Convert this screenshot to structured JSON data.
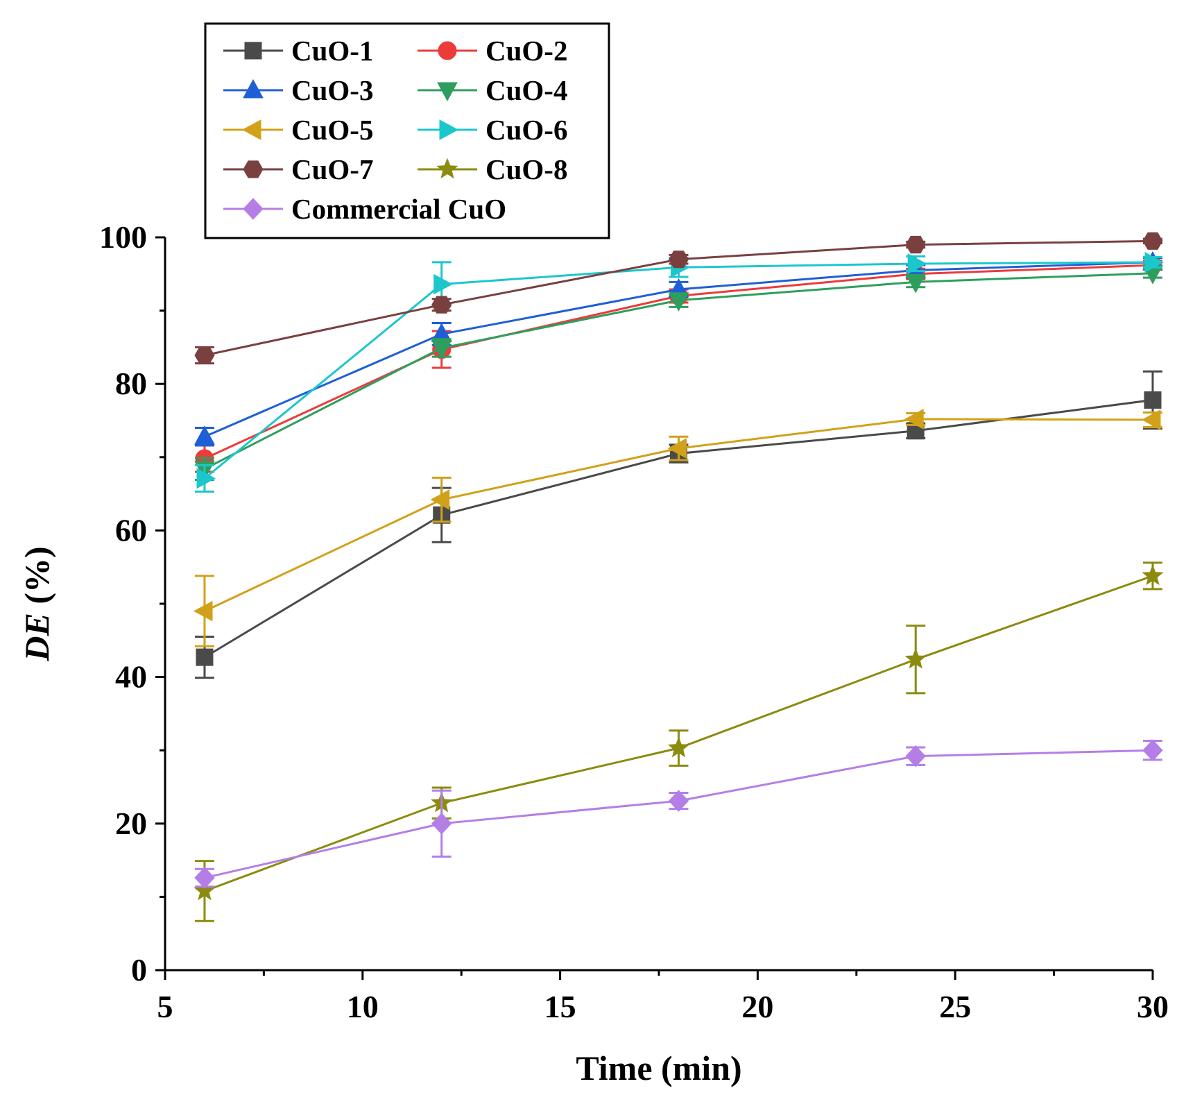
{
  "chart_data": {
    "type": "line",
    "title": "",
    "xlabel": "Time (min)",
    "ylabel_italic": "DE",
    "ylabel_suffix": " (%)",
    "xlim": [
      5,
      30
    ],
    "ylim": [
      0,
      100
    ],
    "xticks": [
      5,
      10,
      15,
      20,
      25,
      30
    ],
    "yticks": [
      0,
      20,
      40,
      60,
      80,
      100
    ],
    "x": [
      6,
      12,
      18,
      24,
      30
    ],
    "legend_position": "top-left",
    "series": [
      {
        "name": "CuO-1",
        "color": "#4a4a4a",
        "marker": "square",
        "values": [
          42.7,
          62.1,
          70.5,
          73.6,
          77.8
        ],
        "errors": [
          2.8,
          3.7,
          1.2,
          1.0,
          3.9
        ]
      },
      {
        "name": "CuO-2",
        "color": "#ec3b3b",
        "marker": "circle",
        "values": [
          69.8,
          84.7,
          92.0,
          95.0,
          96.2
        ],
        "errors": [
          1.8,
          2.5,
          0.9,
          0.7,
          0.6
        ]
      },
      {
        "name": "CuO-3",
        "color": "#1f5fd6",
        "marker": "triangle-up",
        "values": [
          72.8,
          86.8,
          92.9,
          95.5,
          96.6
        ],
        "errors": [
          1.2,
          1.5,
          1.0,
          0.7,
          0.6
        ]
      },
      {
        "name": "CuO-4",
        "color": "#2e9e5e",
        "marker": "triangle-down",
        "values": [
          68.4,
          84.9,
          91.4,
          93.9,
          95.1
        ],
        "errors": [
          1.5,
          1.2,
          0.9,
          0.7,
          0.6
        ]
      },
      {
        "name": "CuO-5",
        "color": "#d1a11a",
        "marker": "triangle-left",
        "values": [
          49.0,
          64.2,
          71.2,
          75.2,
          75.1
        ],
        "errors": [
          4.8,
          3.0,
          1.6,
          0.8,
          1.0
        ]
      },
      {
        "name": "CuO-6",
        "color": "#1cc7cc",
        "marker": "triangle-right",
        "values": [
          67.1,
          93.6,
          95.9,
          96.4,
          96.6
        ],
        "errors": [
          1.8,
          3.0,
          1.3,
          1.0,
          0.7
        ]
      },
      {
        "name": "CuO-7",
        "color": "#7a4040",
        "marker": "hexagon",
        "values": [
          83.9,
          90.8,
          97.0,
          99.0,
          99.5
        ],
        "errors": [
          1.1,
          0.8,
          0.6,
          0.4,
          0.3
        ]
      },
      {
        "name": "CuO-8",
        "color": "#8b8b0f",
        "marker": "star",
        "values": [
          10.8,
          22.8,
          30.3,
          42.4,
          53.8
        ],
        "errors": [
          4.1,
          2.1,
          2.4,
          4.6,
          1.8
        ]
      },
      {
        "name": "Commercial CuO",
        "color": "#b57ee6",
        "marker": "diamond",
        "values": [
          12.6,
          20.0,
          23.1,
          29.2,
          30.0
        ],
        "errors": [
          1.2,
          4.5,
          1.1,
          1.2,
          1.3
        ]
      }
    ]
  }
}
